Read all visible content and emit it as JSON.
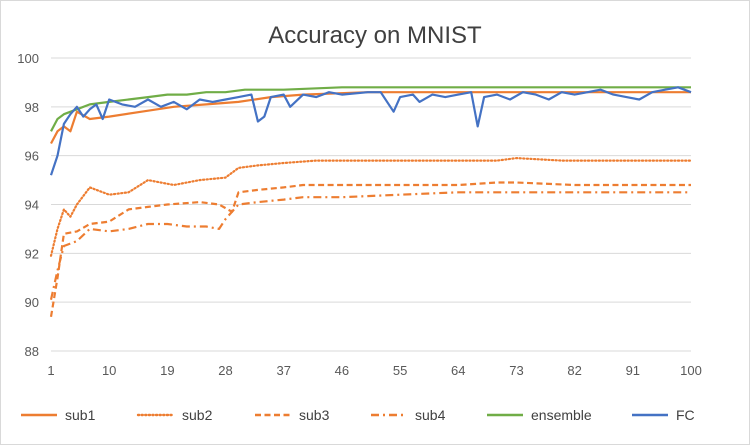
{
  "chart_data": {
    "type": "line",
    "title": "Accuracy on MNIST",
    "xlabel": "",
    "ylabel": "",
    "xlim": [
      1,
      100
    ],
    "ylim": [
      88,
      100
    ],
    "x_tick_labels": [
      1,
      10,
      19,
      28,
      37,
      46,
      55,
      64,
      73,
      82,
      91,
      100
    ],
    "y_tick_labels": [
      88,
      90,
      92,
      94,
      96,
      98,
      100
    ],
    "grid": "horizontal",
    "legend_position": "bottom",
    "series": [
      {
        "name": "sub1",
        "color": "#ED7D31",
        "dash": "solid",
        "keypoints": [
          [
            1,
            96.5
          ],
          [
            2,
            97.0
          ],
          [
            3,
            97.2
          ],
          [
            4,
            97.0
          ],
          [
            5,
            97.8
          ],
          [
            7,
            97.5
          ],
          [
            10,
            97.6
          ],
          [
            15,
            97.8
          ],
          [
            20,
            98.0
          ],
          [
            25,
            98.1
          ],
          [
            30,
            98.2
          ],
          [
            35,
            98.4
          ],
          [
            40,
            98.5
          ],
          [
            50,
            98.6
          ],
          [
            60,
            98.6
          ],
          [
            70,
            98.6
          ],
          [
            80,
            98.6
          ],
          [
            90,
            98.6
          ],
          [
            100,
            98.6
          ]
        ]
      },
      {
        "name": "sub2",
        "color": "#ED7D31",
        "dash": "dotted",
        "keypoints": [
          [
            1,
            91.9
          ],
          [
            2,
            93.0
          ],
          [
            3,
            93.8
          ],
          [
            4,
            93.5
          ],
          [
            5,
            94.0
          ],
          [
            7,
            94.7
          ],
          [
            10,
            94.4
          ],
          [
            13,
            94.5
          ],
          [
            16,
            95.0
          ],
          [
            20,
            94.8
          ],
          [
            24,
            95.0
          ],
          [
            28,
            95.1
          ],
          [
            30,
            95.5
          ],
          [
            33,
            95.6
          ],
          [
            37,
            95.7
          ],
          [
            42,
            95.8
          ],
          [
            50,
            95.8
          ],
          [
            60,
            95.8
          ],
          [
            70,
            95.8
          ],
          [
            73,
            95.9
          ],
          [
            80,
            95.8
          ],
          [
            90,
            95.8
          ],
          [
            100,
            95.8
          ]
        ]
      },
      {
        "name": "sub3",
        "color": "#ED7D31",
        "dash": "dashed",
        "keypoints": [
          [
            1,
            89.4
          ],
          [
            2,
            91.0
          ],
          [
            3,
            92.8
          ],
          [
            5,
            92.9
          ],
          [
            7,
            93.2
          ],
          [
            10,
            93.3
          ],
          [
            13,
            93.8
          ],
          [
            16,
            93.9
          ],
          [
            19,
            94.0
          ],
          [
            24,
            94.1
          ],
          [
            27,
            94.0
          ],
          [
            29,
            93.7
          ],
          [
            30,
            94.5
          ],
          [
            33,
            94.6
          ],
          [
            37,
            94.7
          ],
          [
            40,
            94.8
          ],
          [
            46,
            94.8
          ],
          [
            55,
            94.8
          ],
          [
            64,
            94.8
          ],
          [
            70,
            94.9
          ],
          [
            73,
            94.9
          ],
          [
            82,
            94.8
          ],
          [
            91,
            94.8
          ],
          [
            100,
            94.8
          ]
        ]
      },
      {
        "name": "sub4",
        "color": "#ED7D31",
        "dash": "dashdot",
        "keypoints": [
          [
            1,
            90.1
          ],
          [
            2,
            91.3
          ],
          [
            3,
            92.3
          ],
          [
            5,
            92.5
          ],
          [
            7,
            93.0
          ],
          [
            10,
            92.9
          ],
          [
            13,
            93.0
          ],
          [
            16,
            93.2
          ],
          [
            19,
            93.2
          ],
          [
            22,
            93.1
          ],
          [
            25,
            93.1
          ],
          [
            27,
            93.0
          ],
          [
            28,
            93.4
          ],
          [
            30,
            94.0
          ],
          [
            33,
            94.1
          ],
          [
            37,
            94.2
          ],
          [
            40,
            94.3
          ],
          [
            46,
            94.3
          ],
          [
            55,
            94.4
          ],
          [
            64,
            94.5
          ],
          [
            73,
            94.5
          ],
          [
            82,
            94.5
          ],
          [
            91,
            94.5
          ],
          [
            100,
            94.5
          ]
        ]
      },
      {
        "name": "ensemble",
        "color": "#70AD47",
        "dash": "solid",
        "keypoints": [
          [
            1,
            97.0
          ],
          [
            2,
            97.5
          ],
          [
            3,
            97.7
          ],
          [
            5,
            97.9
          ],
          [
            7,
            98.1
          ],
          [
            10,
            98.2
          ],
          [
            13,
            98.3
          ],
          [
            16,
            98.4
          ],
          [
            19,
            98.5
          ],
          [
            22,
            98.5
          ],
          [
            25,
            98.6
          ],
          [
            28,
            98.6
          ],
          [
            31,
            98.7
          ],
          [
            37,
            98.7
          ],
          [
            46,
            98.8
          ],
          [
            55,
            98.8
          ],
          [
            64,
            98.8
          ],
          [
            73,
            98.8
          ],
          [
            82,
            98.8
          ],
          [
            91,
            98.8
          ],
          [
            100,
            98.8
          ]
        ]
      },
      {
        "name": "FC",
        "color": "#4472C4",
        "dash": "solid",
        "keypoints": [
          [
            1,
            95.2
          ],
          [
            2,
            96.0
          ],
          [
            3,
            97.3
          ],
          [
            4,
            97.7
          ],
          [
            5,
            98.0
          ],
          [
            6,
            97.6
          ],
          [
            7,
            97.9
          ],
          [
            8,
            98.1
          ],
          [
            9,
            97.5
          ],
          [
            10,
            98.3
          ],
          [
            12,
            98.1
          ],
          [
            14,
            98.0
          ],
          [
            16,
            98.3
          ],
          [
            18,
            98.0
          ],
          [
            20,
            98.2
          ],
          [
            22,
            97.9
          ],
          [
            24,
            98.3
          ],
          [
            26,
            98.2
          ],
          [
            28,
            98.3
          ],
          [
            30,
            98.4
          ],
          [
            32,
            98.5
          ],
          [
            33,
            97.4
          ],
          [
            34,
            97.6
          ],
          [
            35,
            98.4
          ],
          [
            37,
            98.5
          ],
          [
            38,
            98.0
          ],
          [
            40,
            98.5
          ],
          [
            42,
            98.4
          ],
          [
            44,
            98.6
          ],
          [
            46,
            98.5
          ],
          [
            50,
            98.6
          ],
          [
            52,
            98.6
          ],
          [
            54,
            97.8
          ],
          [
            55,
            98.4
          ],
          [
            57,
            98.5
          ],
          [
            58,
            98.2
          ],
          [
            60,
            98.5
          ],
          [
            62,
            98.4
          ],
          [
            64,
            98.5
          ],
          [
            66,
            98.6
          ],
          [
            67,
            97.2
          ],
          [
            68,
            98.4
          ],
          [
            70,
            98.5
          ],
          [
            72,
            98.3
          ],
          [
            74,
            98.6
          ],
          [
            76,
            98.5
          ],
          [
            78,
            98.3
          ],
          [
            80,
            98.6
          ],
          [
            82,
            98.5
          ],
          [
            84,
            98.6
          ],
          [
            86,
            98.7
          ],
          [
            88,
            98.5
          ],
          [
            90,
            98.4
          ],
          [
            92,
            98.3
          ],
          [
            94,
            98.6
          ],
          [
            96,
            98.7
          ],
          [
            98,
            98.8
          ],
          [
            100,
            98.6
          ]
        ]
      }
    ]
  }
}
